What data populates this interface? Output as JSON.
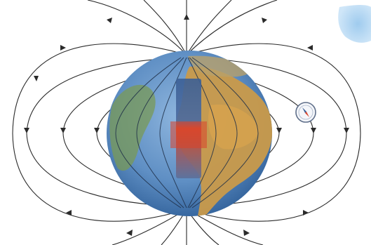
{
  "diagram": {
    "subject": "earth-magnetic-field",
    "colors": {
      "ocean": "#5f8fc4",
      "ocean_dark": "#2f5f98",
      "land": "#c99a4a",
      "land_warm": "#d5a24e",
      "magnet_north": "#3b5f95",
      "magnet_south": "#5b6f9a",
      "magnet_center": "#d9442c",
      "field_line": "#2a2a2a",
      "background": "#ffffff",
      "sky_patch": "#9fcbee"
    },
    "icons": [
      "compass-icon",
      "arrow-icon"
    ]
  }
}
